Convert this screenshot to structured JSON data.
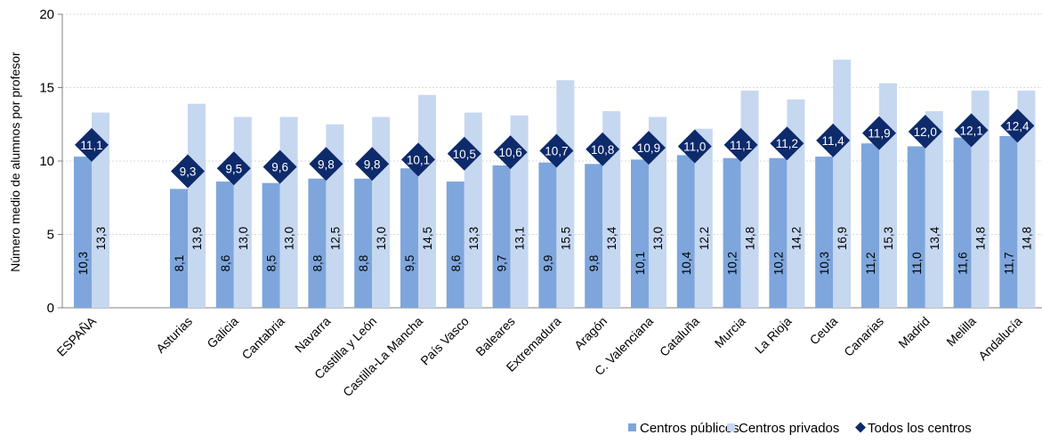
{
  "chart_data": {
    "type": "bar",
    "ylabel": "Número medio de alumnos por profesor",
    "xlabel": "",
    "title": "",
    "ylim": [
      0,
      20
    ],
    "yticks": [
      "0",
      "5",
      "10",
      "15",
      "20"
    ],
    "grid": true,
    "legend_position": "bottom-right",
    "categories": [
      "ESPAÑA",
      "Asturias",
      "Galicia",
      "Cantabria",
      "Navarra",
      "Castilla y León",
      "Castilla-La Mancha",
      "País Vasco",
      "Baleares",
      "Extremadura",
      "Aragón",
      "C. Valenciana",
      "Cataluña",
      "Murcia",
      "La Rioja",
      "Ceuta",
      "Canarias",
      "Madrid",
      "Melilla",
      "Andalucía"
    ],
    "series": [
      {
        "name": "Centros públicos",
        "kind": "bar",
        "color": "#7ea6dc",
        "values": [
          10.3,
          8.1,
          8.6,
          8.5,
          8.8,
          8.8,
          9.5,
          8.6,
          9.7,
          9.9,
          9.8,
          10.1,
          10.4,
          10.2,
          10.2,
          10.3,
          11.2,
          11.0,
          11.6,
          11.7
        ],
        "labels": [
          "10,3",
          "8,1",
          "8,6",
          "8,5",
          "8,8",
          "8,8",
          "9,5",
          "8,6",
          "9,7",
          "9,9",
          "9,8",
          "10,1",
          "10,4",
          "10,2",
          "10,2",
          "10,3",
          "11,2",
          "11,0",
          "11,6",
          "11,7"
        ]
      },
      {
        "name": "Centros privados",
        "kind": "bar",
        "color": "#c6d7f0",
        "values": [
          13.3,
          13.9,
          13.0,
          13.0,
          12.5,
          13.0,
          14.5,
          13.3,
          13.1,
          15.5,
          13.4,
          13.0,
          12.2,
          14.8,
          14.2,
          16.9,
          15.3,
          13.4,
          14.8,
          14.8
        ],
        "labels": [
          "13,3",
          "13,9",
          "13,0",
          "13,0",
          "12,5",
          "13,0",
          "14,5",
          "13,3",
          "13,1",
          "15,5",
          "13,4",
          "13,0",
          "12,2",
          "14,8",
          "14,2",
          "16,9",
          "15,3",
          "13,4",
          "14,8",
          "14,8"
        ]
      },
      {
        "name": "Todos los centros",
        "kind": "marker",
        "color": "#0d2a6a",
        "values": [
          11.1,
          9.3,
          9.5,
          9.6,
          9.8,
          9.8,
          10.1,
          10.5,
          10.6,
          10.7,
          10.8,
          10.9,
          11.0,
          11.1,
          11.2,
          11.4,
          11.9,
          12.0,
          12.1,
          12.4
        ],
        "labels": [
          "11,1",
          "9,3",
          "9,5",
          "9,6",
          "9,8",
          "9,8",
          "10,1",
          "10,5",
          "10,6",
          "10,7",
          "10,8",
          "10,9",
          "11,0",
          "11,1",
          "11,2",
          "11,4",
          "11,9",
          "12,0",
          "12,1",
          "12,4"
        ]
      }
    ]
  }
}
